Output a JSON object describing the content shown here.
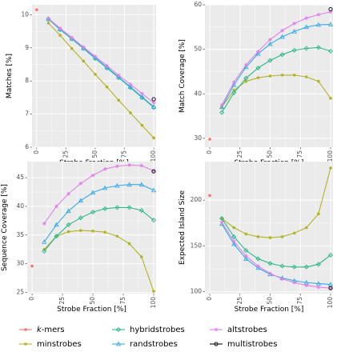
{
  "colors": {
    "kmers": "#F8766D",
    "minstrobes": "#B3B325",
    "hybridstrobes": "#2CB78C",
    "randstrobes": "#37ACE8",
    "altstrobes": "#E27FE8",
    "multistrobes": "#111111",
    "panel_bg": "#EBEBEB",
    "grid": "#FFFFFF"
  },
  "legend": {
    "items": [
      {
        "key": "kmers",
        "label": "k-mers",
        "marker": "dot"
      },
      {
        "key": "minstrobes",
        "label": "minstrobes",
        "marker": "dot"
      },
      {
        "key": "hybridstrobes",
        "label": "hybridstrobes",
        "marker": "diamond"
      },
      {
        "key": "randstrobes",
        "label": "randstrobes",
        "marker": "triangle"
      },
      {
        "key": "altstrobes",
        "label": "altstrobes",
        "marker": "star"
      },
      {
        "key": "multistrobes",
        "label": "multistrobes",
        "marker": "ring"
      }
    ]
  },
  "chart_data": [
    {
      "type": "line",
      "title": "",
      "xlabel": "Strobe Fraction [%]",
      "ylabel": "Matches [%]",
      "xlim": [
        -4,
        102
      ],
      "ylim": [
        6.0,
        10.3
      ],
      "xticks": [
        0,
        25,
        50,
        75,
        100
      ],
      "yticks": [
        6,
        7,
        8,
        9,
        10
      ],
      "x": [
        10,
        20,
        30,
        40,
        50,
        60,
        70,
        80,
        90,
        100
      ],
      "kmers": {
        "x": 0,
        "y": 10.15
      },
      "series": [
        {
          "key": "minstrobes",
          "values": [
            9.75,
            9.38,
            8.98,
            8.6,
            8.2,
            7.82,
            7.42,
            7.04,
            6.66,
            6.28
          ]
        },
        {
          "key": "hybridstrobes",
          "values": [
            9.87,
            9.55,
            9.27,
            8.98,
            8.68,
            8.39,
            8.1,
            7.8,
            7.5,
            7.2
          ]
        },
        {
          "key": "randstrobes",
          "values": [
            9.87,
            9.56,
            9.28,
            8.99,
            8.7,
            8.41,
            8.12,
            7.82,
            7.52,
            7.22
          ]
        },
        {
          "key": "altstrobes",
          "values": [
            9.89,
            9.59,
            9.31,
            9.02,
            8.74,
            8.46,
            8.17,
            7.9,
            7.62,
            7.34
          ]
        }
      ],
      "multistrobes": {
        "x": 100,
        "y": 7.45
      }
    },
    {
      "type": "line",
      "title": "",
      "xlabel": "Strobe Fraction [%]",
      "ylabel": "Match Coverage [%]",
      "xlim": [
        -4,
        102
      ],
      "ylim": [
        28,
        60
      ],
      "xticks": [
        0,
        25,
        50,
        75,
        100
      ],
      "yticks": [
        30,
        40,
        50,
        60
      ],
      "x": [
        10,
        20,
        30,
        40,
        50,
        60,
        70,
        80,
        90,
        100
      ],
      "kmers": {
        "x": 0,
        "y": 29.8
      },
      "series": [
        {
          "key": "minstrobes",
          "values": [
            37.0,
            40.8,
            42.8,
            43.6,
            44.0,
            44.2,
            44.2,
            43.8,
            42.8,
            39.0
          ]
        },
        {
          "key": "hybridstrobes",
          "values": [
            35.8,
            40.2,
            43.5,
            45.8,
            47.5,
            48.8,
            49.8,
            50.2,
            50.4,
            49.6
          ]
        },
        {
          "key": "randstrobes",
          "values": [
            37.0,
            42.0,
            46.0,
            49.0,
            51.2,
            52.8,
            54.0,
            55.0,
            55.5,
            55.6
          ]
        },
        {
          "key": "altstrobes",
          "values": [
            37.5,
            42.6,
            46.5,
            49.5,
            52.2,
            54.2,
            55.8,
            57.0,
            57.8,
            58.4
          ]
        }
      ],
      "multistrobes": {
        "x": 100,
        "y": 59.0
      }
    },
    {
      "type": "line",
      "title": "",
      "xlabel": "Strobe Fraction [%]",
      "ylabel": "Sequence Coverage [%]",
      "xlim": [
        -4,
        102
      ],
      "ylim": [
        24.8,
        47.8
      ],
      "xticks": [
        0,
        25,
        50,
        75,
        100
      ],
      "yticks": [
        25,
        30,
        35,
        40,
        45
      ],
      "x": [
        10,
        20,
        30,
        40,
        50,
        60,
        70,
        80,
        90,
        100
      ],
      "kmers": {
        "x": 0,
        "y": 29.6
      },
      "series": [
        {
          "key": "minstrobes",
          "values": [
            32.5,
            34.8,
            35.6,
            35.8,
            35.7,
            35.5,
            34.8,
            33.5,
            31.2,
            25.2
          ]
        },
        {
          "key": "hybridstrobes",
          "values": [
            32.2,
            34.8,
            36.8,
            38.0,
            39.0,
            39.6,
            39.8,
            39.8,
            39.3,
            37.6
          ]
        },
        {
          "key": "randstrobes",
          "values": [
            33.8,
            36.8,
            39.2,
            41.0,
            42.4,
            43.2,
            43.6,
            43.8,
            43.8,
            42.8
          ]
        },
        {
          "key": "altstrobes",
          "values": [
            37.0,
            40.0,
            42.2,
            44.0,
            45.4,
            46.5,
            47.0,
            47.2,
            47.1,
            46.2
          ]
        }
      ],
      "multistrobes": {
        "x": 100,
        "y": 46.1
      }
    },
    {
      "type": "line",
      "title": "",
      "xlabel": "Strobe Fraction [%]",
      "ylabel": "Expected Island Size",
      "xlim": [
        -4,
        102
      ],
      "ylim": [
        98,
        242
      ],
      "xticks": [
        0,
        25,
        50,
        75,
        100
      ],
      "yticks": [
        100,
        150,
        200
      ],
      "x": [
        10,
        20,
        30,
        40,
        50,
        60,
        70,
        80,
        90,
        100
      ],
      "kmers": {
        "x": 0,
        "y": 205
      },
      "series": [
        {
          "key": "minstrobes",
          "values": [
            180,
            170,
            163,
            160,
            159,
            160,
            164,
            170,
            185,
            235
          ]
        },
        {
          "key": "hybridstrobes",
          "values": [
            180,
            160,
            145,
            136,
            131,
            128,
            127,
            127,
            130,
            140
          ]
        },
        {
          "key": "randstrobes",
          "values": [
            174,
            152,
            136,
            126,
            119,
            115,
            112,
            110,
            109,
            108
          ]
        },
        {
          "key": "altstrobes",
          "values": [
            176,
            155,
            139,
            128,
            120,
            114,
            110,
            107,
            105,
            104
          ]
        }
      ],
      "multistrobes": {
        "x": 100,
        "y": 104
      }
    }
  ]
}
